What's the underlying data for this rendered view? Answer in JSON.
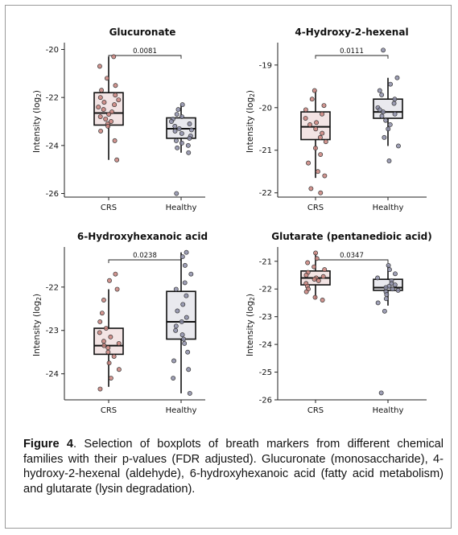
{
  "colors": {
    "crs": "#c9837c",
    "healthy": "#8d8ea8",
    "crs_box": "#f3e4e4",
    "healthy_box": "#e9e9ee"
  },
  "chart_data": [
    {
      "type": "box",
      "title": "Glucuronate",
      "ylabel": "Intensity (log",
      "ylabel_sub": "2",
      "ylabel_close": ")",
      "categories": [
        "CRS",
        "Healthy"
      ],
      "yticks": [
        -20,
        -22,
        -24,
        -26
      ],
      "ytick_labels": [
        "-20",
        "-22",
        "-24",
        "-26"
      ],
      "ylim": [
        -26.15,
        -19.85
      ],
      "pvalue": "0.0081",
      "groups": [
        {
          "name": "CRS",
          "q1": -23.15,
          "median": -22.65,
          "q3": -21.8,
          "whisker_low": -24.6,
          "whisker_high": -20.3,
          "points": [
            -20.3,
            -20.7,
            -21.2,
            -21.5,
            -21.7,
            -21.9,
            -22.0,
            -22.1,
            -22.2,
            -22.3,
            -22.4,
            -22.5,
            -22.6,
            -22.7,
            -22.8,
            -22.9,
            -23.0,
            -23.1,
            -23.2,
            -23.4,
            -23.8,
            -24.6
          ]
        },
        {
          "name": "Healthy",
          "q1": -23.7,
          "median": -23.3,
          "q3": -22.85,
          "whisker_low": -24.3,
          "whisker_high": -22.3,
          "points": [
            -22.3,
            -22.5,
            -22.7,
            -22.8,
            -22.9,
            -23.0,
            -23.1,
            -23.2,
            -23.3,
            -23.35,
            -23.4,
            -23.5,
            -23.6,
            -23.7,
            -23.8,
            -23.9,
            -24.0,
            -24.1,
            -24.3,
            -26.0
          ]
        }
      ]
    },
    {
      "type": "box",
      "title": "4-Hydroxy-2-hexenal",
      "ylabel": "Intensity (log",
      "ylabel_sub": "2",
      "ylabel_close": ")",
      "categories": [
        "CRS",
        "Healthy"
      ],
      "yticks": [
        -19,
        -20,
        -21,
        -22
      ],
      "ytick_labels": [
        "-19",
        "-20",
        "-21",
        "-22"
      ],
      "ylim": [
        -22.1,
        -18.55
      ],
      "pvalue": "0.0111",
      "groups": [
        {
          "name": "CRS",
          "q1": -20.75,
          "median": -20.45,
          "q3": -20.1,
          "whisker_low": -21.65,
          "whisker_high": -19.6,
          "points": [
            -19.6,
            -19.8,
            -19.95,
            -20.05,
            -20.15,
            -20.25,
            -20.35,
            -20.4,
            -20.5,
            -20.6,
            -20.7,
            -20.8,
            -20.95,
            -21.1,
            -21.3,
            -21.5,
            -21.6,
            -21.9,
            -22.0
          ]
        },
        {
          "name": "Healthy",
          "q1": -20.25,
          "median": -20.1,
          "q3": -19.8,
          "whisker_low": -20.9,
          "whisker_high": -19.3,
          "points": [
            -18.65,
            -19.3,
            -19.45,
            -19.6,
            -19.7,
            -19.8,
            -19.9,
            -20.0,
            -20.05,
            -20.1,
            -20.15,
            -20.2,
            -20.3,
            -20.4,
            -20.5,
            -20.7,
            -20.9,
            -21.25
          ]
        }
      ]
    },
    {
      "type": "box",
      "title": "6-Hydroxyhexanoic acid",
      "ylabel": "Intensity (log",
      "ylabel_sub": "2",
      "ylabel_close": ")",
      "categories": [
        "CRS",
        "Healthy"
      ],
      "yticks": [
        -22,
        -23,
        -24
      ],
      "ytick_labels": [
        "-22",
        "-23",
        "-24"
      ],
      "ylim": [
        -24.6,
        -21.15
      ],
      "pvalue": "0.0238",
      "groups": [
        {
          "name": "CRS",
          "q1": -23.55,
          "median": -23.35,
          "q3": -22.95,
          "whisker_low": -24.3,
          "whisker_high": -22.05,
          "points": [
            -21.7,
            -21.85,
            -22.05,
            -22.3,
            -22.6,
            -22.8,
            -22.95,
            -23.05,
            -23.15,
            -23.25,
            -23.3,
            -23.35,
            -23.4,
            -23.5,
            -23.6,
            -23.75,
            -23.9,
            -24.1,
            -24.35
          ]
        },
        {
          "name": "Healthy",
          "q1": -23.2,
          "median": -22.8,
          "q3": -22.1,
          "whisker_low": -24.45,
          "whisker_high": -21.2,
          "points": [
            -21.2,
            -21.3,
            -21.5,
            -21.7,
            -21.9,
            -22.05,
            -22.2,
            -22.4,
            -22.55,
            -22.7,
            -22.8,
            -22.9,
            -23.0,
            -23.1,
            -23.2,
            -23.3,
            -23.5,
            -23.7,
            -23.9,
            -24.1,
            -24.45
          ]
        }
      ]
    },
    {
      "type": "box",
      "title": "Glutarate (pentanedioic acid)",
      "ylabel": "Intensity (log",
      "ylabel_sub": "2",
      "ylabel_close": ")",
      "categories": [
        "CRS",
        "Healthy"
      ],
      "yticks": [
        -21,
        -22,
        -23,
        -24,
        -25,
        -26
      ],
      "ytick_labels": [
        "-21",
        "-22",
        "-23",
        "-24",
        "-25",
        "-26"
      ],
      "ylim": [
        -26.0,
        -20.6
      ],
      "pvalue": "0.0347",
      "groups": [
        {
          "name": "CRS",
          "q1": -21.85,
          "median": -21.6,
          "q3": -21.35,
          "whisker_low": -22.35,
          "whisker_high": -20.7,
          "points": [
            -20.7,
            -20.9,
            -21.05,
            -21.2,
            -21.3,
            -21.4,
            -21.5,
            -21.55,
            -21.6,
            -21.65,
            -21.7,
            -21.8,
            -21.9,
            -22.0,
            -22.1,
            -22.3,
            -22.4
          ]
        },
        {
          "name": "Healthy",
          "q1": -22.05,
          "median": -21.95,
          "q3": -21.65,
          "whisker_low": -22.6,
          "whisker_high": -21.15,
          "points": [
            -21.15,
            -21.3,
            -21.45,
            -21.6,
            -21.7,
            -21.8,
            -21.85,
            -21.9,
            -21.95,
            -22.0,
            -22.05,
            -22.1,
            -22.2,
            -22.35,
            -22.5,
            -22.8,
            -25.75
          ]
        }
      ]
    }
  ],
  "caption": {
    "label": "Figure 4",
    "text": ". Selection of boxplots of breath markers from different chemical families with their p-values (FDR adjusted). Glucuronate (monosaccharide), 4-hydroxy-2-hexenal (aldehyde), 6-hydroxyhexanoic acid (fatty acid metabolism) and glutarate (lysin degradation)."
  }
}
